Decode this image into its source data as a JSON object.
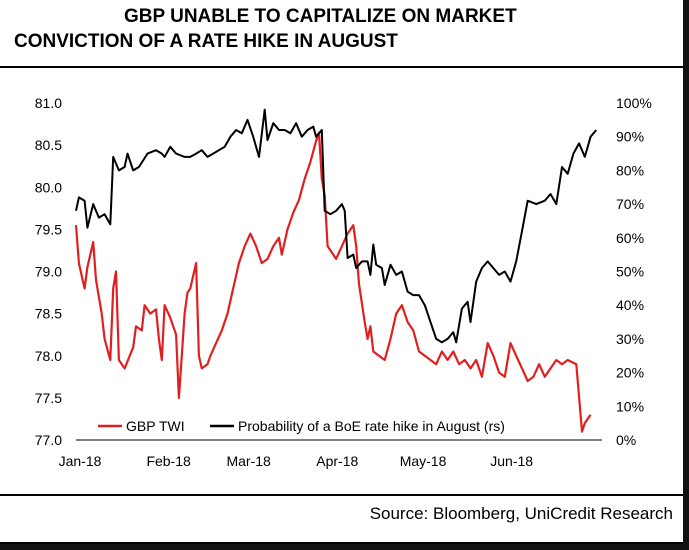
{
  "title": {
    "line1": "GBP UNABLE TO CAPITALIZE ON MARKET",
    "line2": "CONVICTION OF A RATE HIKE IN AUGUST"
  },
  "source": "Source: Bloomberg, UniCredit Research",
  "colors": {
    "gbp_twi": "#e02020",
    "probability": "#000000"
  },
  "chart_data": {
    "type": "line",
    "title": "GBP UNABLE TO CAPITALIZE ON MARKET CONVICTION OF A RATE HIKE IN AUGUST",
    "xlabel": "",
    "ylabel": "",
    "y2label": "",
    "x_tick_labels": [
      "Jan-18",
      "Feb-18",
      "Mar-18",
      "Apr-18",
      "May-18",
      "Jun-18"
    ],
    "y_left": {
      "lim": [
        77.0,
        81.0
      ],
      "ticks": [
        77.0,
        77.5,
        78.0,
        78.5,
        79.0,
        79.5,
        80.0,
        80.5,
        81.0
      ],
      "tick_labels": [
        "77.0",
        "77.5",
        "78.0",
        "78.5",
        "79.0",
        "79.5",
        "80.0",
        "80.5",
        "81.0"
      ]
    },
    "y_right": {
      "lim": [
        0,
        100
      ],
      "ticks": [
        0,
        10,
        20,
        30,
        40,
        50,
        60,
        70,
        80,
        90,
        100
      ],
      "tick_labels": [
        "0%",
        "10%",
        "20%",
        "30%",
        "40%",
        "50%",
        "60%",
        "70%",
        "80%",
        "90%",
        "100%"
      ]
    },
    "legend": {
      "placement": "bottom-left"
    },
    "grid": false,
    "series": [
      {
        "name": "GBP TWI",
        "axis": "left",
        "points": [
          [
            "2018-01-01",
            79.55
          ],
          [
            "2018-01-02",
            79.1
          ],
          [
            "2018-01-03",
            78.95
          ],
          [
            "2018-01-04",
            78.8
          ],
          [
            "2018-01-05",
            79.05
          ],
          [
            "2018-01-07",
            79.35
          ],
          [
            "2018-01-08",
            78.9
          ],
          [
            "2018-01-10",
            78.5
          ],
          [
            "2018-01-11",
            78.2
          ],
          [
            "2018-01-13",
            77.95
          ],
          [
            "2018-01-14",
            78.8
          ],
          [
            "2018-01-15",
            79.0
          ],
          [
            "2018-01-16",
            77.95
          ],
          [
            "2018-01-18",
            77.85
          ],
          [
            "2018-01-21",
            78.1
          ],
          [
            "2018-01-22",
            78.35
          ],
          [
            "2018-01-24",
            78.3
          ],
          [
            "2018-01-25",
            78.6
          ],
          [
            "2018-01-27",
            78.5
          ],
          [
            "2018-01-29",
            78.55
          ],
          [
            "2018-01-30",
            78.2
          ],
          [
            "2018-01-31",
            77.95
          ],
          [
            "2018-02-01",
            78.6
          ],
          [
            "2018-02-03",
            78.45
          ],
          [
            "2018-02-05",
            78.25
          ],
          [
            "2018-02-06",
            77.5
          ],
          [
            "2018-02-07",
            78.0
          ],
          [
            "2018-02-08",
            78.5
          ],
          [
            "2018-02-09",
            78.75
          ],
          [
            "2018-02-10",
            78.8
          ],
          [
            "2018-02-11",
            78.95
          ],
          [
            "2018-02-12",
            79.1
          ],
          [
            "2018-02-13",
            78.0
          ],
          [
            "2018-02-14",
            77.85
          ],
          [
            "2018-02-16",
            77.9
          ],
          [
            "2018-02-17",
            78.0
          ],
          [
            "2018-02-19",
            78.15
          ],
          [
            "2018-02-21",
            78.3
          ],
          [
            "2018-02-23",
            78.5
          ],
          [
            "2018-02-25",
            78.8
          ],
          [
            "2018-02-27",
            79.1
          ],
          [
            "2018-03-01",
            79.3
          ],
          [
            "2018-03-03",
            79.45
          ],
          [
            "2018-03-05",
            79.3
          ],
          [
            "2018-03-07",
            79.1
          ],
          [
            "2018-03-09",
            79.15
          ],
          [
            "2018-03-11",
            79.3
          ],
          [
            "2018-03-13",
            79.4
          ],
          [
            "2018-03-14",
            79.2
          ],
          [
            "2018-03-16",
            79.5
          ],
          [
            "2018-03-18",
            79.7
          ],
          [
            "2018-03-20",
            79.85
          ],
          [
            "2018-03-22",
            80.1
          ],
          [
            "2018-03-24",
            80.3
          ],
          [
            "2018-03-26",
            80.55
          ],
          [
            "2018-03-27",
            80.65
          ],
          [
            "2018-03-28",
            80.1
          ],
          [
            "2018-03-29",
            79.9
          ],
          [
            "2018-03-30",
            79.3
          ],
          [
            "2018-04-01",
            79.2
          ],
          [
            "2018-04-02",
            79.15
          ],
          [
            "2018-04-04",
            79.3
          ],
          [
            "2018-04-06",
            79.45
          ],
          [
            "2018-04-08",
            79.55
          ],
          [
            "2018-04-09",
            79.3
          ],
          [
            "2018-04-10",
            78.85
          ],
          [
            "2018-04-12",
            78.4
          ],
          [
            "2018-04-13",
            78.2
          ],
          [
            "2018-04-14",
            78.35
          ],
          [
            "2018-04-15",
            78.05
          ],
          [
            "2018-04-17",
            78.0
          ],
          [
            "2018-04-19",
            77.95
          ],
          [
            "2018-04-21",
            78.2
          ],
          [
            "2018-04-23",
            78.5
          ],
          [
            "2018-04-25",
            78.6
          ],
          [
            "2018-04-27",
            78.4
          ],
          [
            "2018-04-29",
            78.3
          ],
          [
            "2018-05-01",
            78.05
          ],
          [
            "2018-05-03",
            78.0
          ],
          [
            "2018-05-05",
            77.95
          ],
          [
            "2018-05-07",
            77.9
          ],
          [
            "2018-05-09",
            78.05
          ],
          [
            "2018-05-11",
            77.95
          ],
          [
            "2018-05-13",
            78.05
          ],
          [
            "2018-05-15",
            77.9
          ],
          [
            "2018-05-17",
            77.95
          ],
          [
            "2018-05-19",
            77.85
          ],
          [
            "2018-05-21",
            77.95
          ],
          [
            "2018-05-23",
            77.75
          ],
          [
            "2018-05-25",
            78.15
          ],
          [
            "2018-05-27",
            78.0
          ],
          [
            "2018-05-29",
            77.8
          ],
          [
            "2018-05-31",
            77.75
          ],
          [
            "2018-06-02",
            78.15
          ],
          [
            "2018-06-04",
            78.0
          ],
          [
            "2018-06-06",
            77.85
          ],
          [
            "2018-06-08",
            77.7
          ],
          [
            "2018-06-10",
            77.75
          ],
          [
            "2018-06-12",
            77.9
          ],
          [
            "2018-06-14",
            77.75
          ],
          [
            "2018-06-16",
            77.85
          ],
          [
            "2018-06-18",
            77.95
          ],
          [
            "2018-06-20",
            77.9
          ],
          [
            "2018-06-22",
            77.95
          ],
          [
            "2018-06-25",
            77.9
          ],
          [
            "2018-06-27",
            77.1
          ],
          [
            "2018-06-28",
            77.2
          ],
          [
            "2018-06-30",
            77.3
          ]
        ]
      },
      {
        "name": "Probability of a BoE rate hike in August (rs)",
        "axis": "right",
        "points": [
          [
            "2018-01-01",
            68
          ],
          [
            "2018-01-02",
            72
          ],
          [
            "2018-01-04",
            71
          ],
          [
            "2018-01-05",
            63
          ],
          [
            "2018-01-07",
            70
          ],
          [
            "2018-01-09",
            66
          ],
          [
            "2018-01-11",
            67
          ],
          [
            "2018-01-13",
            64
          ],
          [
            "2018-01-14",
            84
          ],
          [
            "2018-01-16",
            80
          ],
          [
            "2018-01-18",
            81
          ],
          [
            "2018-01-19",
            85
          ],
          [
            "2018-01-21",
            80
          ],
          [
            "2018-01-23",
            81
          ],
          [
            "2018-01-26",
            85
          ],
          [
            "2018-01-29",
            86
          ],
          [
            "2018-01-31",
            85
          ],
          [
            "2018-02-01",
            84
          ],
          [
            "2018-02-03",
            87
          ],
          [
            "2018-02-05",
            85
          ],
          [
            "2018-02-08",
            84
          ],
          [
            "2018-02-10",
            84
          ],
          [
            "2018-02-12",
            85
          ],
          [
            "2018-02-14",
            86
          ],
          [
            "2018-02-16",
            84
          ],
          [
            "2018-02-18",
            85
          ],
          [
            "2018-02-20",
            86
          ],
          [
            "2018-02-22",
            87
          ],
          [
            "2018-02-24",
            90
          ],
          [
            "2018-02-26",
            92
          ],
          [
            "2018-02-28",
            91
          ],
          [
            "2018-03-02",
            95
          ],
          [
            "2018-03-04",
            90
          ],
          [
            "2018-03-06",
            84
          ],
          [
            "2018-03-08",
            98
          ],
          [
            "2018-03-09",
            89
          ],
          [
            "2018-03-11",
            94
          ],
          [
            "2018-03-13",
            92
          ],
          [
            "2018-03-15",
            92
          ],
          [
            "2018-03-17",
            91
          ],
          [
            "2018-03-19",
            94
          ],
          [
            "2018-03-21",
            90
          ],
          [
            "2018-03-23",
            92
          ],
          [
            "2018-03-25",
            93
          ],
          [
            "2018-03-26",
            90
          ],
          [
            "2018-03-28",
            92
          ],
          [
            "2018-03-29",
            68
          ],
          [
            "2018-03-31",
            67
          ],
          [
            "2018-04-02",
            68
          ],
          [
            "2018-04-04",
            70
          ],
          [
            "2018-04-05",
            68
          ],
          [
            "2018-04-06",
            54
          ],
          [
            "2018-04-08",
            55
          ],
          [
            "2018-04-09",
            51
          ],
          [
            "2018-04-11",
            53
          ],
          [
            "2018-04-13",
            53
          ],
          [
            "2018-04-14",
            49
          ],
          [
            "2018-04-15",
            58
          ],
          [
            "2018-04-16",
            52
          ],
          [
            "2018-04-18",
            51
          ],
          [
            "2018-04-19",
            46
          ],
          [
            "2018-04-21",
            52
          ],
          [
            "2018-04-23",
            49
          ],
          [
            "2018-04-25",
            50
          ],
          [
            "2018-04-27",
            44
          ],
          [
            "2018-04-29",
            43
          ],
          [
            "2018-05-01",
            43
          ],
          [
            "2018-05-03",
            40
          ],
          [
            "2018-05-05",
            35
          ],
          [
            "2018-05-07",
            30
          ],
          [
            "2018-05-09",
            29
          ],
          [
            "2018-05-11",
            30
          ],
          [
            "2018-05-13",
            32
          ],
          [
            "2018-05-14",
            29
          ],
          [
            "2018-05-16",
            39
          ],
          [
            "2018-05-18",
            41
          ],
          [
            "2018-05-19",
            35
          ],
          [
            "2018-05-21",
            47
          ],
          [
            "2018-05-23",
            51
          ],
          [
            "2018-05-25",
            53
          ],
          [
            "2018-05-27",
            51
          ],
          [
            "2018-05-29",
            49
          ],
          [
            "2018-05-31",
            50
          ],
          [
            "2018-06-02",
            47
          ],
          [
            "2018-06-04",
            53
          ],
          [
            "2018-06-06",
            62
          ],
          [
            "2018-06-08",
            71
          ],
          [
            "2018-06-11",
            70
          ],
          [
            "2018-06-14",
            71
          ],
          [
            "2018-06-16",
            73
          ],
          [
            "2018-06-18",
            70
          ],
          [
            "2018-06-20",
            81
          ],
          [
            "2018-06-22",
            79
          ],
          [
            "2018-06-24",
            85
          ],
          [
            "2018-06-26",
            88
          ],
          [
            "2018-06-28",
            84
          ],
          [
            "2018-06-30",
            90
          ],
          [
            "2018-07-02",
            92
          ]
        ]
      }
    ]
  }
}
